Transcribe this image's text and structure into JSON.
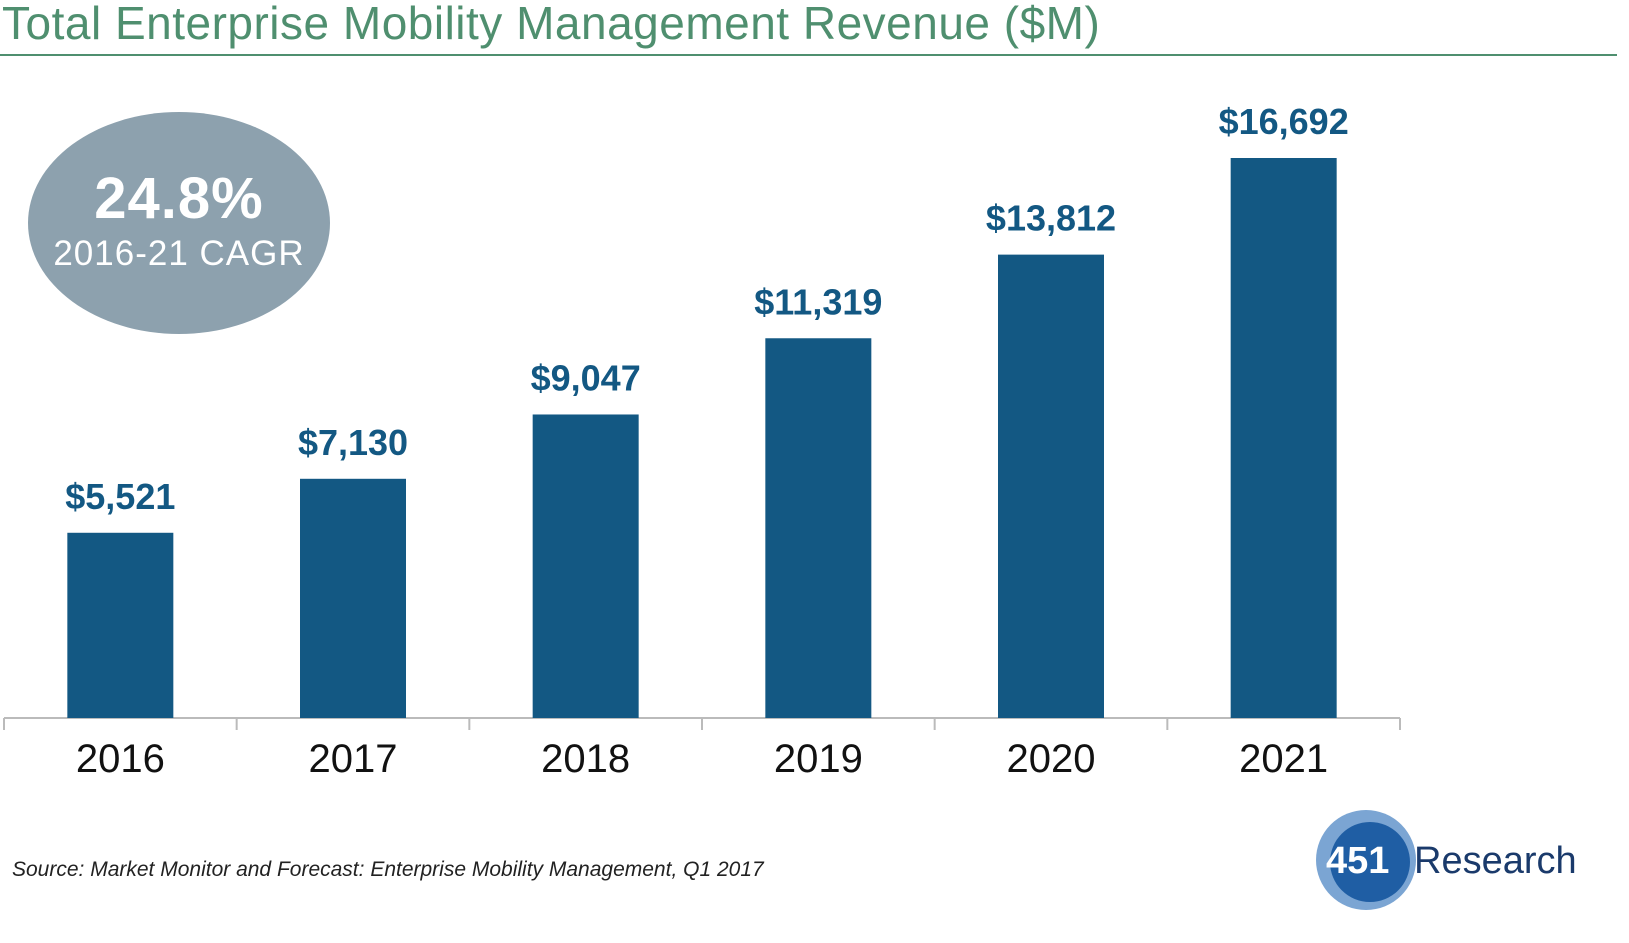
{
  "title": "Total Enterprise Mobility Management Revenue ($M)",
  "cagr": {
    "value": "24.8%",
    "label": "2016-21 CAGR"
  },
  "source": "Source: Market Monitor and Forecast: Enterprise Mobility Management, Q1 2017",
  "logo": {
    "number": "451",
    "word": "Research"
  },
  "colors": {
    "bar": "#135883",
    "title": "#4f8f6f",
    "ellipse": "#8da1ae",
    "axis": "#bbbbbb",
    "label": "#135883"
  },
  "chart_data": {
    "type": "bar",
    "title": "Total Enterprise Mobility Management Revenue ($M)",
    "xlabel": "",
    "ylabel": "",
    "categories": [
      "2016",
      "2017",
      "2018",
      "2019",
      "2020",
      "2021"
    ],
    "values": [
      5521,
      7130,
      9047,
      11319,
      13812,
      16692
    ],
    "value_labels": [
      "$5,521",
      "$7,130",
      "$9,047",
      "$11,319",
      "$13,812",
      "$16,692"
    ],
    "ylim": [
      0,
      16692
    ],
    "grid": false,
    "legend": "none"
  }
}
